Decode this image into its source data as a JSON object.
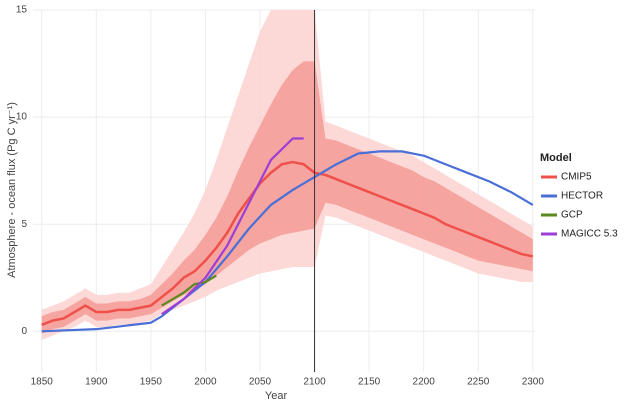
{
  "chart_data": {
    "type": "line",
    "xlabel": "Year",
    "ylabel": "Atmosphere - ocean flux (Pg C yr⁻¹)",
    "legend_title": "Model",
    "legend": "right",
    "grid": true,
    "xlim": [
      1842,
      2302
    ],
    "ylim": [
      -1.9,
      15
    ],
    "xticks": [
      1850,
      1900,
      1950,
      2000,
      2050,
      2100,
      2150,
      2200,
      2250,
      2300
    ],
    "yticks": [
      0,
      5,
      10,
      15
    ],
    "vline": 2100,
    "series": [
      {
        "name": "CMIP5",
        "color": "#f0504a",
        "x": [
          1850,
          1860,
          1870,
          1880,
          1890,
          1900,
          1910,
          1920,
          1930,
          1940,
          1950,
          1960,
          1970,
          1980,
          1990,
          2000,
          2010,
          2020,
          2030,
          2040,
          2050,
          2060,
          2070,
          2080,
          2090,
          2100,
          2110,
          2120,
          2130,
          2140,
          2150,
          2160,
          2170,
          2180,
          2190,
          2200,
          2210,
          2220,
          2230,
          2240,
          2250,
          2260,
          2270,
          2280,
          2290,
          2300
        ],
        "values": [
          0.3,
          0.5,
          0.6,
          0.9,
          1.2,
          0.9,
          0.9,
          1.0,
          1.0,
          1.1,
          1.2,
          1.6,
          2.0,
          2.5,
          2.8,
          3.3,
          3.9,
          4.6,
          5.5,
          6.2,
          6.9,
          7.4,
          7.8,
          7.9,
          7.8,
          7.4,
          7.3,
          7.1,
          6.9,
          6.7,
          6.5,
          6.3,
          6.1,
          5.9,
          5.7,
          5.5,
          5.3,
          5.0,
          4.8,
          4.6,
          4.4,
          4.2,
          4.0,
          3.8,
          3.6,
          3.5
        ],
        "inner": {
          "color": "#f59a96",
          "low": [
            -0.1,
            0.1,
            0.2,
            0.5,
            0.8,
            0.5,
            0.5,
            0.6,
            0.6,
            0.7,
            0.8,
            1.1,
            1.4,
            1.7,
            1.9,
            2.2,
            2.6,
            3.0,
            3.4,
            3.8,
            4.1,
            4.3,
            4.5,
            4.6,
            4.7,
            4.8,
            6.0,
            5.9,
            5.7,
            5.5,
            5.3,
            5.1,
            4.9,
            4.7,
            4.5,
            4.3,
            4.1,
            3.9,
            3.7,
            3.5,
            3.3,
            3.2,
            3.1,
            3.0,
            2.9,
            2.8
          ],
          "high": [
            0.7,
            0.9,
            1.0,
            1.3,
            1.6,
            1.3,
            1.3,
            1.4,
            1.4,
            1.5,
            1.7,
            2.2,
            2.7,
            3.3,
            3.8,
            4.5,
            5.3,
            6.3,
            7.5,
            8.6,
            9.6,
            10.6,
            11.5,
            12.2,
            12.6,
            12.6,
            9.0,
            8.9,
            8.7,
            8.5,
            8.3,
            8.1,
            7.9,
            7.7,
            7.5,
            7.2,
            7.0,
            6.7,
            6.4,
            6.1,
            5.8,
            5.5,
            5.2,
            4.9,
            4.6,
            4.3
          ]
        },
        "outer": {
          "color": "#fbd2d0",
          "low": [
            -0.4,
            -0.2,
            0.0,
            0.2,
            0.5,
            0.2,
            0.2,
            0.3,
            0.3,
            0.4,
            0.5,
            0.8,
            1.0,
            1.2,
            1.4,
            1.6,
            1.9,
            2.1,
            2.3,
            2.5,
            2.7,
            2.8,
            2.9,
            3.0,
            3.0,
            3.0,
            5.4,
            5.3,
            5.1,
            4.9,
            4.7,
            4.5,
            4.3,
            4.1,
            3.9,
            3.7,
            3.5,
            3.3,
            3.1,
            2.9,
            2.7,
            2.6,
            2.5,
            2.4,
            2.3,
            2.3
          ],
          "high": [
            1.0,
            1.2,
            1.4,
            1.7,
            2.0,
            1.7,
            1.7,
            1.8,
            1.8,
            2.0,
            2.2,
            3.0,
            3.8,
            4.6,
            5.5,
            6.6,
            8.0,
            9.5,
            11.0,
            12.5,
            14.0,
            15,
            15,
            15,
            15,
            15,
            9.8,
            9.6,
            9.4,
            9.2,
            9.0,
            8.8,
            8.6,
            8.4,
            8.2,
            7.9,
            7.6,
            7.3,
            7.0,
            6.7,
            6.4,
            6.1,
            5.8,
            5.5,
            5.2,
            4.9
          ]
        }
      },
      {
        "name": "HECTOR",
        "color": "#4a6fd6",
        "x": [
          1850,
          1900,
          1950,
          1960,
          1980,
          2000,
          2020,
          2040,
          2060,
          2080,
          2100,
          2120,
          2140,
          2160,
          2180,
          2200,
          2220,
          2240,
          2260,
          2280,
          2300
        ],
        "values": [
          0,
          0.1,
          0.4,
          0.7,
          1.5,
          2.3,
          3.5,
          4.8,
          5.9,
          6.6,
          7.2,
          7.8,
          8.3,
          8.4,
          8.4,
          8.2,
          7.8,
          7.4,
          7.0,
          6.5,
          5.9
        ]
      },
      {
        "name": "GCP",
        "color": "#5a8a1e",
        "x": [
          1960,
          1970,
          1980,
          1990,
          2000,
          2010
        ],
        "values": [
          1.2,
          1.5,
          1.8,
          2.2,
          2.3,
          2.6
        ]
      },
      {
        "name": "MAGICC 5.3",
        "color": "#9b3fd6",
        "x": [
          1960,
          1980,
          2000,
          2020,
          2040,
          2060,
          2080,
          2090
        ],
        "values": [
          0.8,
          1.5,
          2.5,
          4.0,
          6.0,
          8.0,
          9.0,
          9.0
        ]
      }
    ]
  }
}
